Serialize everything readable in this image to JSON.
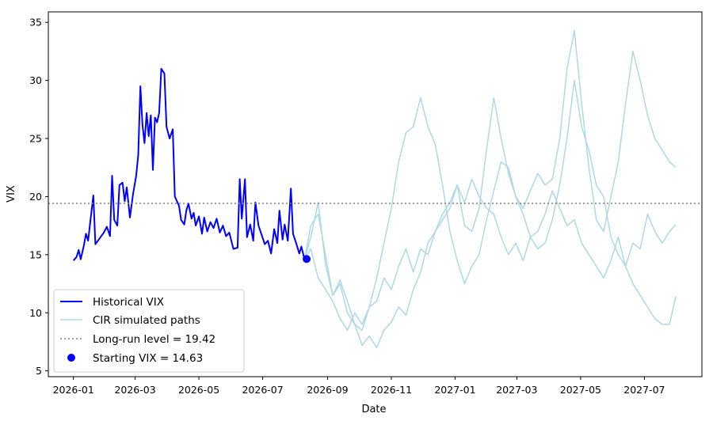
{
  "chart_data": {
    "type": "line",
    "title": "",
    "xlabel": "Date",
    "ylabel": "VIX",
    "xlim": [
      "2025-12-08",
      "2027-08-25"
    ],
    "ylim": [
      4.5,
      35.9
    ],
    "x_ticks": [
      "2026-01",
      "2026-03",
      "2026-05",
      "2026-07",
      "2026-09",
      "2026-11",
      "2027-01",
      "2027-03",
      "2027-05",
      "2027-07"
    ],
    "y_ticks": [
      5,
      10,
      15,
      20,
      25,
      30,
      35
    ],
    "grid": false,
    "legend_position": "lower-left",
    "colors": {
      "historical": "#0000ff",
      "simulated": "#add8e6",
      "long_run": "#808080",
      "start_point": "#0000ff"
    },
    "series": [
      {
        "name": "Historical VIX",
        "style": "line",
        "points": [
          [
            "2026-01-01",
            14.5
          ],
          [
            "2026-01-04",
            14.8
          ],
          [
            "2026-01-06",
            15.4
          ],
          [
            "2026-01-08",
            14.6
          ],
          [
            "2026-01-11",
            15.8
          ],
          [
            "2026-01-13",
            16.8
          ],
          [
            "2026-01-15",
            16.2
          ],
          [
            "2026-01-18",
            18.5
          ],
          [
            "2026-01-20",
            20.1
          ],
          [
            "2026-01-22",
            15.9
          ],
          [
            "2026-01-26",
            16.4
          ],
          [
            "2026-01-30",
            16.9
          ],
          [
            "2026-02-02",
            17.4
          ],
          [
            "2026-02-05",
            16.6
          ],
          [
            "2026-02-07",
            21.8
          ],
          [
            "2026-02-09",
            18.0
          ],
          [
            "2026-02-12",
            17.5
          ],
          [
            "2026-02-14",
            21.0
          ],
          [
            "2026-02-17",
            21.2
          ],
          [
            "2026-02-19",
            19.6
          ],
          [
            "2026-02-21",
            20.8
          ],
          [
            "2026-02-24",
            18.2
          ],
          [
            "2026-02-27",
            20.2
          ],
          [
            "2026-03-02",
            21.8
          ],
          [
            "2026-03-04",
            23.6
          ],
          [
            "2026-03-06",
            29.5
          ],
          [
            "2026-03-08",
            26.2
          ],
          [
            "2026-03-10",
            24.6
          ],
          [
            "2026-03-12",
            27.2
          ],
          [
            "2026-03-14",
            25.2
          ],
          [
            "2026-03-16",
            27.0
          ],
          [
            "2026-03-18",
            22.3
          ],
          [
            "2026-03-20",
            26.8
          ],
          [
            "2026-03-22",
            26.4
          ],
          [
            "2026-03-24",
            27.2
          ],
          [
            "2026-03-26",
            31.0
          ],
          [
            "2026-03-29",
            30.6
          ],
          [
            "2026-03-31",
            26.0
          ],
          [
            "2026-04-03",
            25.0
          ],
          [
            "2026-04-06",
            25.8
          ],
          [
            "2026-04-08",
            20.0
          ],
          [
            "2026-04-12",
            19.2
          ],
          [
            "2026-04-14",
            18.0
          ],
          [
            "2026-04-17",
            17.6
          ],
          [
            "2026-04-19",
            18.8
          ],
          [
            "2026-04-21",
            19.4
          ],
          [
            "2026-04-24",
            18.1
          ],
          [
            "2026-04-26",
            18.6
          ],
          [
            "2026-04-28",
            17.5
          ],
          [
            "2026-05-01",
            18.3
          ],
          [
            "2026-05-04",
            16.8
          ],
          [
            "2026-05-06",
            18.2
          ],
          [
            "2026-05-09",
            17.0
          ],
          [
            "2026-05-12",
            17.8
          ],
          [
            "2026-05-15",
            17.3
          ],
          [
            "2026-05-18",
            18.1
          ],
          [
            "2026-05-21",
            16.9
          ],
          [
            "2026-05-24",
            17.5
          ],
          [
            "2026-05-27",
            16.6
          ],
          [
            "2026-05-30",
            16.9
          ],
          [
            "2026-06-03",
            15.5
          ],
          [
            "2026-06-07",
            15.6
          ],
          [
            "2026-06-09",
            21.5
          ],
          [
            "2026-06-11",
            18.1
          ],
          [
            "2026-06-14",
            21.5
          ],
          [
            "2026-06-16",
            16.5
          ],
          [
            "2026-06-19",
            17.6
          ],
          [
            "2026-06-22",
            16.2
          ],
          [
            "2026-06-24",
            19.5
          ],
          [
            "2026-06-27",
            17.5
          ],
          [
            "2026-06-30",
            16.7
          ],
          [
            "2026-07-03",
            15.9
          ],
          [
            "2026-07-06",
            16.2
          ],
          [
            "2026-07-09",
            15.1
          ],
          [
            "2026-07-12",
            17.2
          ],
          [
            "2026-07-15",
            16.0
          ],
          [
            "2026-07-17",
            18.8
          ],
          [
            "2026-07-20",
            16.3
          ],
          [
            "2026-07-22",
            17.6
          ],
          [
            "2026-07-25",
            16.2
          ],
          [
            "2026-07-28",
            20.7
          ],
          [
            "2026-07-30",
            16.8
          ],
          [
            "2026-08-02",
            16.0
          ],
          [
            "2026-08-05",
            15.1
          ],
          [
            "2026-08-07",
            15.7
          ],
          [
            "2026-08-10",
            14.6
          ]
        ]
      },
      {
        "name": "CIR simulated paths",
        "style": "line",
        "points": [
          [
            "2026-08-10",
            14.6
          ],
          [
            "2026-08-16",
            16.5
          ],
          [
            "2026-08-23",
            19.5
          ],
          [
            "2026-08-30",
            14.2
          ],
          [
            "2026-09-06",
            11.5
          ],
          [
            "2026-09-13",
            12.8
          ],
          [
            "2026-09-20",
            11.0
          ],
          [
            "2026-09-27",
            9.0
          ],
          [
            "2026-10-04",
            7.2
          ],
          [
            "2026-10-11",
            8.0
          ],
          [
            "2026-10-18",
            7.0
          ],
          [
            "2026-10-25",
            8.5
          ],
          [
            "2026-11-01",
            9.2
          ],
          [
            "2026-11-08",
            10.5
          ],
          [
            "2026-11-15",
            9.8
          ],
          [
            "2026-11-22",
            12.0
          ],
          [
            "2026-11-29",
            13.5
          ],
          [
            "2026-12-06",
            16.0
          ],
          [
            "2026-12-13",
            17.0
          ],
          [
            "2026-12-20",
            18.5
          ],
          [
            "2026-12-27",
            19.5
          ],
          [
            "2027-01-03",
            21.0
          ],
          [
            "2027-01-10",
            19.5
          ],
          [
            "2027-01-17",
            21.5
          ],
          [
            "2027-01-24",
            20.0
          ],
          [
            "2027-01-31",
            19.0
          ],
          [
            "2027-02-07",
            18.5
          ],
          [
            "2027-02-14",
            16.5
          ],
          [
            "2027-02-21",
            15.0
          ],
          [
            "2027-02-28",
            16.0
          ],
          [
            "2027-03-07",
            14.5
          ],
          [
            "2027-03-14",
            16.5
          ],
          [
            "2027-03-21",
            17.0
          ],
          [
            "2027-03-28",
            18.5
          ],
          [
            "2027-04-04",
            20.5
          ],
          [
            "2027-04-11",
            19.0
          ],
          [
            "2027-04-18",
            17.5
          ],
          [
            "2027-04-25",
            18.0
          ],
          [
            "2027-05-02",
            16.0
          ],
          [
            "2027-05-09",
            15.0
          ],
          [
            "2027-05-16",
            14.0
          ],
          [
            "2027-05-23",
            13.0
          ],
          [
            "2027-05-30",
            14.5
          ],
          [
            "2027-06-06",
            16.5
          ],
          [
            "2027-06-13",
            14.0
          ],
          [
            "2027-06-20",
            12.5
          ],
          [
            "2027-06-27",
            11.5
          ],
          [
            "2027-07-04",
            10.5
          ],
          [
            "2027-07-11",
            9.5
          ],
          [
            "2027-07-18",
            9.0
          ],
          [
            "2027-07-25",
            9.0
          ],
          [
            "2027-07-31",
            11.4
          ]
        ]
      },
      {
        "name": "",
        "style": "line",
        "points": [
          [
            "2026-08-10",
            14.6
          ],
          [
            "2026-08-16",
            15.5
          ],
          [
            "2026-08-23",
            13.0
          ],
          [
            "2026-08-30",
            12.0
          ],
          [
            "2026-09-06",
            11.0
          ],
          [
            "2026-09-13",
            9.5
          ],
          [
            "2026-09-20",
            8.5
          ],
          [
            "2026-09-27",
            10.0
          ],
          [
            "2026-10-04",
            9.0
          ],
          [
            "2026-10-11",
            10.5
          ],
          [
            "2026-10-18",
            13.0
          ],
          [
            "2026-10-25",
            16.0
          ],
          [
            "2026-11-01",
            19.0
          ],
          [
            "2026-11-08",
            23.0
          ],
          [
            "2026-11-15",
            25.5
          ],
          [
            "2026-11-22",
            26.0
          ],
          [
            "2026-11-29",
            28.5
          ],
          [
            "2026-12-06",
            26.0
          ],
          [
            "2026-12-13",
            24.5
          ],
          [
            "2026-12-20",
            21.0
          ],
          [
            "2026-12-27",
            17.0
          ],
          [
            "2027-01-03",
            14.5
          ],
          [
            "2027-01-10",
            12.5
          ],
          [
            "2027-01-17",
            14.0
          ],
          [
            "2027-01-24",
            15.0
          ],
          [
            "2027-01-31",
            18.0
          ],
          [
            "2027-02-07",
            20.5
          ],
          [
            "2027-02-14",
            23.0
          ],
          [
            "2027-02-21",
            22.5
          ],
          [
            "2027-02-28",
            20.0
          ],
          [
            "2027-03-07",
            18.5
          ],
          [
            "2027-03-14",
            16.5
          ],
          [
            "2027-03-21",
            15.5
          ],
          [
            "2027-03-28",
            16.0
          ],
          [
            "2027-04-04",
            18.0
          ],
          [
            "2027-04-11",
            21.0
          ],
          [
            "2027-04-18",
            25.0
          ],
          [
            "2027-04-25",
            30.0
          ],
          [
            "2027-05-02",
            26.0
          ],
          [
            "2027-05-09",
            24.0
          ],
          [
            "2027-05-16",
            21.0
          ],
          [
            "2027-05-23",
            20.0
          ],
          [
            "2027-05-30",
            16.5
          ],
          [
            "2027-06-06",
            15.0
          ],
          [
            "2027-06-13",
            14.0
          ],
          [
            "2027-06-20",
            16.0
          ],
          [
            "2027-06-27",
            15.5
          ],
          [
            "2027-07-04",
            18.5
          ],
          [
            "2027-07-11",
            17.0
          ],
          [
            "2027-07-18",
            16.0
          ],
          [
            "2027-07-25",
            17.0
          ],
          [
            "2027-07-31",
            17.6
          ]
        ]
      },
      {
        "name": "",
        "style": "line",
        "points": [
          [
            "2026-08-10",
            14.6
          ],
          [
            "2026-08-16",
            17.5
          ],
          [
            "2026-08-23",
            18.5
          ],
          [
            "2026-08-30",
            15.0
          ],
          [
            "2026-09-06",
            11.5
          ],
          [
            "2026-09-13",
            12.5
          ],
          [
            "2026-09-20",
            10.0
          ],
          [
            "2026-09-27",
            9.0
          ],
          [
            "2026-10-04",
            8.5
          ],
          [
            "2026-10-11",
            10.5
          ],
          [
            "2026-10-18",
            11.0
          ],
          [
            "2026-10-25",
            13.0
          ],
          [
            "2026-11-01",
            12.0
          ],
          [
            "2026-11-08",
            14.0
          ],
          [
            "2026-11-15",
            15.5
          ],
          [
            "2026-11-22",
            13.5
          ],
          [
            "2026-11-29",
            15.5
          ],
          [
            "2026-12-06",
            15.0
          ],
          [
            "2026-12-13",
            17.0
          ],
          [
            "2026-12-20",
            18.0
          ],
          [
            "2026-12-27",
            19.0
          ],
          [
            "2027-01-03",
            21.0
          ],
          [
            "2027-01-10",
            17.5
          ],
          [
            "2027-01-17",
            17.0
          ],
          [
            "2027-01-24",
            19.0
          ],
          [
            "2027-01-31",
            24.0
          ],
          [
            "2027-02-07",
            28.5
          ],
          [
            "2027-02-14",
            25.0
          ],
          [
            "2027-02-21",
            22.0
          ],
          [
            "2027-02-28",
            20.0
          ],
          [
            "2027-03-07",
            19.0
          ],
          [
            "2027-03-14",
            20.5
          ],
          [
            "2027-03-21",
            22.0
          ],
          [
            "2027-03-28",
            21.0
          ],
          [
            "2027-04-04",
            21.5
          ],
          [
            "2027-04-11",
            25.0
          ],
          [
            "2027-04-18",
            31.0
          ],
          [
            "2027-04-25",
            34.3
          ],
          [
            "2027-05-02",
            28.0
          ],
          [
            "2027-05-09",
            22.5
          ],
          [
            "2027-05-16",
            18.0
          ],
          [
            "2027-05-23",
            17.0
          ],
          [
            "2027-05-30",
            20.0
          ],
          [
            "2027-06-06",
            23.0
          ],
          [
            "2027-06-13",
            28.0
          ],
          [
            "2027-06-20",
            32.5
          ],
          [
            "2027-06-27",
            30.0
          ],
          [
            "2027-07-04",
            27.0
          ],
          [
            "2027-07-11",
            25.0
          ],
          [
            "2027-07-18",
            24.0
          ],
          [
            "2027-07-25",
            23.0
          ],
          [
            "2027-07-31",
            22.5
          ]
        ]
      },
      {
        "name": "Long-run level = 19.42",
        "style": "hline",
        "value": 19.42
      },
      {
        "name": "Starting VIX = 14.63",
        "style": "point",
        "x": "2026-08-12",
        "y": 14.63
      }
    ]
  }
}
